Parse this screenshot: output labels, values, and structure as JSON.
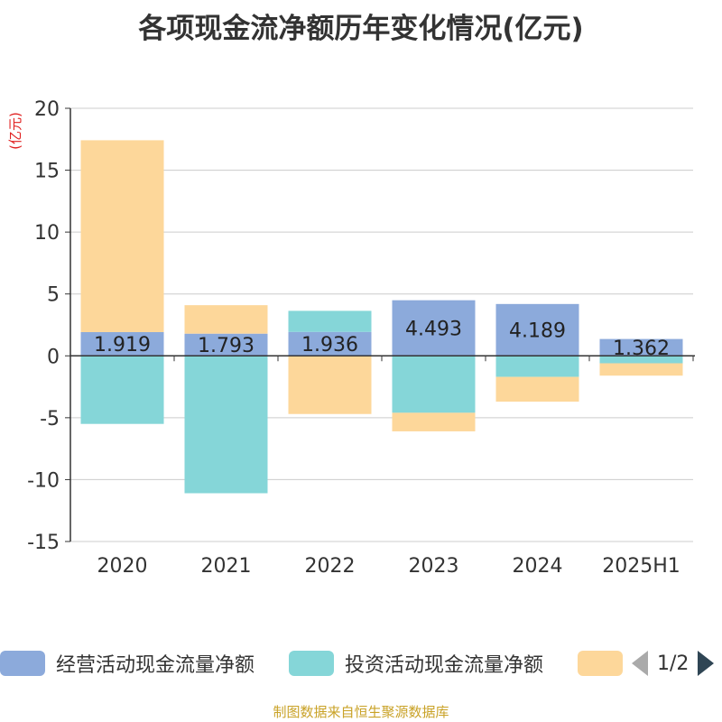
{
  "colors": {
    "operating": "#8caadb",
    "investing": "#85d6d8",
    "financing": "#fdd79a",
    "grid": "#cccccc",
    "axis": "#333333",
    "unit": "#e02020",
    "source": "#c9a227"
  },
  "chart_data": {
    "type": "bar",
    "stacked": true,
    "title": "各项现金流净额历年变化情况(亿元)",
    "unit_label": "(亿元)",
    "categories": [
      "2020",
      "2021",
      "2022",
      "2023",
      "2024",
      "2025H1"
    ],
    "ylim": [
      -15,
      20
    ],
    "yticks": [
      -15,
      -10,
      -5,
      0,
      5,
      10,
      15,
      20
    ],
    "ytick_labels": [
      "-15",
      "-10",
      "-5",
      "0",
      "5",
      "10",
      "15",
      "20"
    ],
    "grid": true,
    "legend_position": "bottom",
    "series": [
      {
        "name": "经营活动现金流量净额",
        "color_key": "operating",
        "values": [
          1.919,
          1.793,
          1.936,
          4.493,
          4.189,
          1.362
        ],
        "labels": [
          "1.919",
          "1.793",
          "1.936",
          "4.493",
          "4.189",
          "1.362"
        ]
      },
      {
        "name": "投资活动现金流量净额",
        "color_key": "investing",
        "values": [
          -5.5,
          -11.1,
          1.7,
          -4.6,
          -1.7,
          -0.6
        ]
      },
      {
        "color_key": "financing",
        "values": [
          15.5,
          2.3,
          -4.7,
          -1.5,
          -2.0,
          -1.0
        ]
      }
    ]
  },
  "legend": {
    "page": "1/2"
  },
  "source": "制图数据来自恒生聚源数据库"
}
